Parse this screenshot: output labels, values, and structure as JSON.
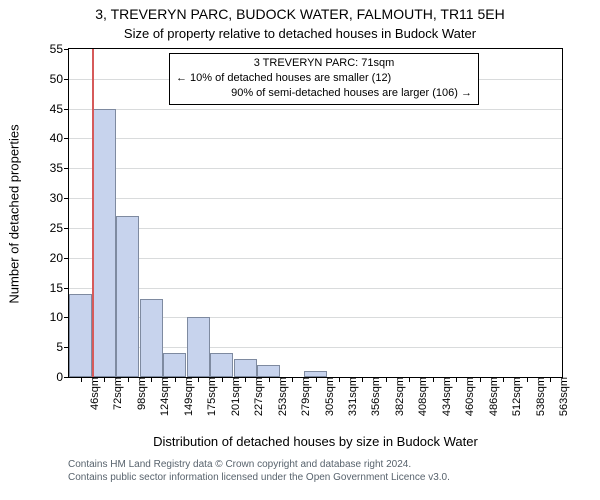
{
  "chart": {
    "type": "histogram",
    "title": "3, TREVERYN PARC, BUDOCK WATER, FALMOUTH, TR11 5EH",
    "subtitle": "Size of property relative to detached houses in Budock Water",
    "xlabel": "Distribution of detached houses by size in Budock Water",
    "ylabel": "Number of detached properties",
    "background_color": "#ffffff",
    "grid_color": "#d9dbdc",
    "axis_color": "#000000",
    "bar_fill": "#c7d3ed",
    "bar_stroke": "#7e8aa0",
    "marker_color": "#d65a5a",
    "title_fontsize": 14,
    "subtitle_fontsize": 13,
    "label_fontsize": 13,
    "tick_fontsize": 12,
    "xtick_fontsize": 11,
    "annotation_fontsize": 11,
    "ylim": [
      0,
      55
    ],
    "yticks": [
      0,
      5,
      10,
      15,
      20,
      25,
      30,
      35,
      40,
      45,
      50,
      55
    ],
    "xticks": [
      "46sqm",
      "72sqm",
      "98sqm",
      "124sqm",
      "149sqm",
      "175sqm",
      "201sqm",
      "227sqm",
      "253sqm",
      "279sqm",
      "305sqm",
      "331sqm",
      "356sqm",
      "382sqm",
      "408sqm",
      "434sqm",
      "460sqm",
      "486sqm",
      "512sqm",
      "538sqm",
      "563sqm"
    ],
    "bar_count": 21,
    "values": [
      14,
      45,
      27,
      13,
      4,
      10,
      4,
      3,
      2,
      0,
      1,
      0,
      0,
      0,
      0,
      0,
      0,
      0,
      0,
      0,
      0
    ],
    "marker_x_index": 1,
    "annotation": {
      "line1": "3 TREVERYN PARC: 71sqm",
      "line2": "← 10% of detached houses are smaller (12)",
      "line3": "90% of semi-detached houses are larger (106) →"
    }
  },
  "footer": {
    "line1": "Contains HM Land Registry data © Crown copyright and database right 2024.",
    "line2": "Contains public sector information licensed under the Open Government Licence v3.0.",
    "color": "#58636d",
    "fontsize": 10
  }
}
